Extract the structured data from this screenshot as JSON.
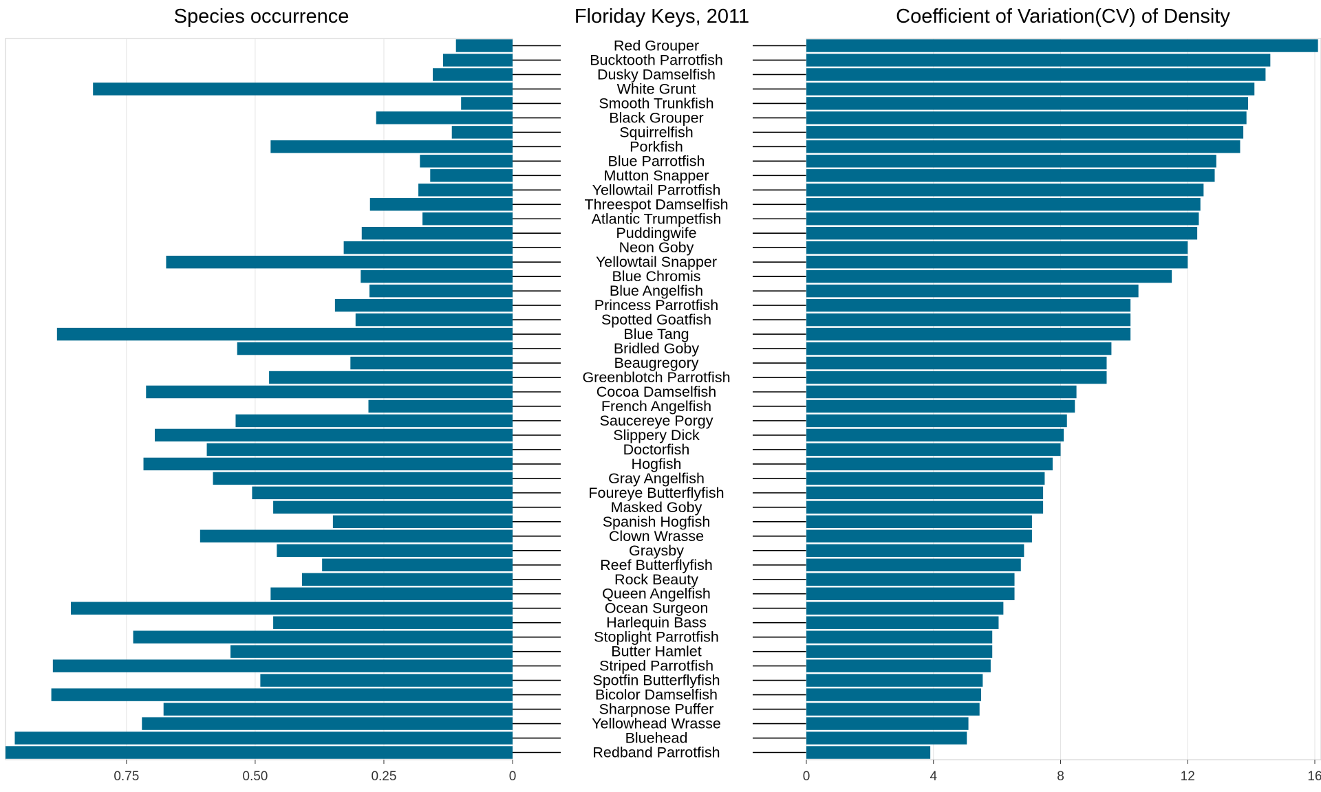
{
  "chart_data": [
    {
      "type": "bar",
      "orientation": "horizontal",
      "direction": "reversed",
      "title": "Species occurrence",
      "xlabel": "",
      "ylabel": "",
      "xlim": [
        0,
        0.985
      ],
      "xticks": [
        "0.75",
        "0.50",
        "0.25",
        "0"
      ],
      "grid": true,
      "categories": [
        "Red Grouper",
        "Bucktooth Parrotfish",
        "Dusky Damselfish",
        "White Grunt",
        "Smooth Trunkfish",
        "Black Grouper",
        "Squirrelfish",
        "Porkfish",
        "Blue Parrotfish",
        "Mutton Snapper",
        "Yellowtail Parrotfish",
        "Threespot Damselfish",
        "Atlantic Trumpetfish",
        "Puddingwife",
        "Neon Goby",
        "Yellowtail Snapper",
        "Blue Chromis",
        "Blue Angelfish",
        "Princess Parrotfish",
        "Spotted Goatfish",
        "Blue Tang",
        "Bridled Goby",
        "Beaugregory",
        "Greenblotch Parrotfish",
        "Cocoa Damselfish",
        "French Angelfish",
        "Saucereye Porgy",
        "Slippery Dick",
        "Doctorfish",
        "Hogfish",
        "Gray Angelfish",
        "Foureye Butterflyfish",
        "Masked Goby",
        "Spanish Hogfish",
        "Clown Wrasse",
        "Graysby",
        "Reef Butterflyfish",
        "Rock Beauty",
        "Queen Angelfish",
        "Ocean Surgeon",
        "Harlequin Bass",
        "Stoplight Parrotfish",
        "Butter Hamlet",
        "Striped Parrotfish",
        "Spotfin Butterflyfish",
        "Bicolor Damselfish",
        "Sharpnose Puffer",
        "Yellowhead Wrasse",
        "Bluehead",
        "Redband Parrotfish"
      ],
      "values": [
        0.11,
        0.135,
        0.155,
        0.815,
        0.1,
        0.265,
        0.118,
        0.47,
        0.18,
        0.16,
        0.183,
        0.277,
        0.175,
        0.293,
        0.328,
        0.673,
        0.295,
        0.278,
        0.345,
        0.305,
        0.885,
        0.535,
        0.315,
        0.473,
        0.712,
        0.28,
        0.538,
        0.695,
        0.594,
        0.717,
        0.582,
        0.506,
        0.465,
        0.349,
        0.607,
        0.458,
        0.37,
        0.409,
        0.47,
        0.858,
        0.465,
        0.737,
        0.548,
        0.893,
        0.49,
        0.896,
        0.678,
        0.72,
        0.967,
        0.985
      ],
      "color": "#006a8e"
    },
    {
      "type": "table",
      "title": "Floriday Keys, 2011"
    },
    {
      "type": "bar",
      "orientation": "horizontal",
      "title": "Coefficient of Variation(CV) of Density",
      "xlabel": "",
      "ylabel": "",
      "xlim": [
        0,
        16
      ],
      "xticks": [
        "0",
        "4",
        "8",
        "12",
        "16"
      ],
      "grid": true,
      "categories": [
        "Red Grouper",
        "Bucktooth Parrotfish",
        "Dusky Damselfish",
        "White Grunt",
        "Smooth Trunkfish",
        "Black Grouper",
        "Squirrelfish",
        "Porkfish",
        "Blue Parrotfish",
        "Mutton Snapper",
        "Yellowtail Parrotfish",
        "Threespot Damselfish",
        "Atlantic Trumpetfish",
        "Puddingwife",
        "Neon Goby",
        "Yellowtail Snapper",
        "Blue Chromis",
        "Blue Angelfish",
        "Princess Parrotfish",
        "Spotted Goatfish",
        "Blue Tang",
        "Bridled Goby",
        "Beaugregory",
        "Greenblotch Parrotfish",
        "Cocoa Damselfish",
        "French Angelfish",
        "Saucereye Porgy",
        "Slippery Dick",
        "Doctorfish",
        "Hogfish",
        "Gray Angelfish",
        "Foureye Butterflyfish",
        "Masked Goby",
        "Spanish Hogfish",
        "Clown Wrasse",
        "Graysby",
        "Reef Butterflyfish",
        "Rock Beauty",
        "Queen Angelfish",
        "Ocean Surgeon",
        "Harlequin Bass",
        "Stoplight Parrotfish",
        "Butter Hamlet",
        "Striped Parrotfish",
        "Spotfin Butterflyfish",
        "Bicolor Damselfish",
        "Sharpnose Puffer",
        "Yellowhead Wrasse",
        "Bluehead",
        "Redband Parrotfish"
      ],
      "values": [
        16.1,
        14.6,
        14.45,
        14.1,
        13.9,
        13.85,
        13.75,
        13.65,
        12.9,
        12.85,
        12.5,
        12.4,
        12.35,
        12.3,
        12.0,
        12.0,
        11.5,
        10.45,
        10.2,
        10.2,
        10.2,
        9.6,
        9.45,
        9.45,
        8.5,
        8.45,
        8.2,
        8.1,
        8.0,
        7.75,
        7.5,
        7.45,
        7.45,
        7.1,
        7.1,
        6.85,
        6.75,
        6.55,
        6.55,
        6.2,
        6.05,
        5.85,
        5.85,
        5.8,
        5.55,
        5.5,
        5.45,
        5.1,
        5.05,
        3.9
      ],
      "color": "#006a8e"
    }
  ]
}
